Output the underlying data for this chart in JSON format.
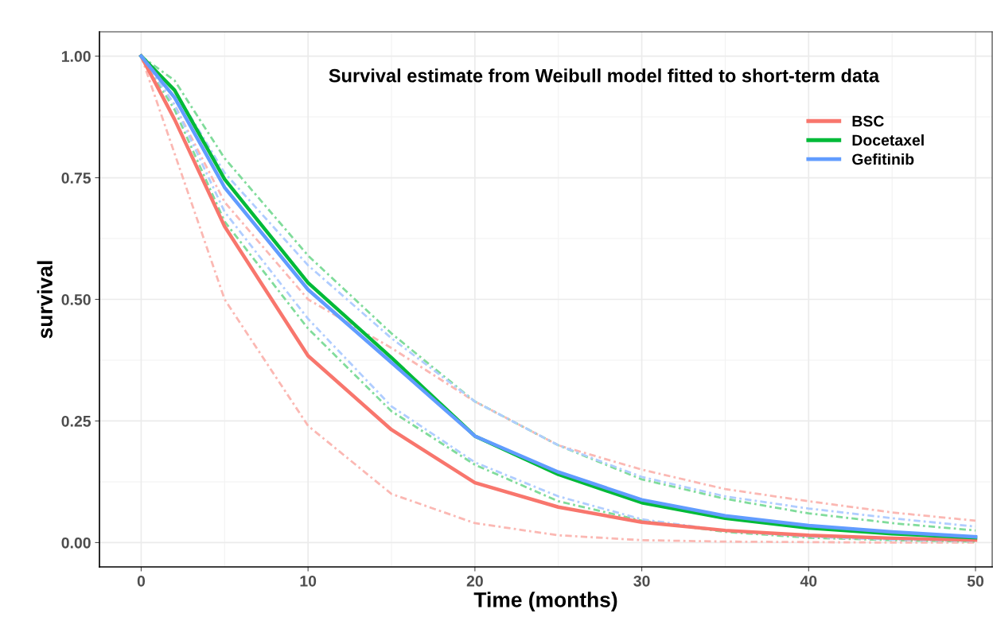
{
  "chart_data": {
    "type": "line",
    "title": "Survival estimate from Weibull model fitted to short-term data",
    "xlabel": "Time (months)",
    "ylabel": "survival",
    "x": [
      0,
      2,
      5,
      10,
      15,
      20,
      25,
      30,
      35,
      40,
      45,
      50
    ],
    "series": [
      {
        "name": "BSC",
        "color": "#f8766d",
        "values": [
          1.0,
          0.87,
          0.65,
          0.384,
          0.232,
          0.123,
          0.073,
          0.042,
          0.025,
          0.015,
          0.009,
          0.005
        ]
      },
      {
        "name": "Docetaxel",
        "color": "#00ba38",
        "values": [
          1.0,
          0.93,
          0.747,
          0.534,
          0.38,
          0.219,
          0.14,
          0.082,
          0.05,
          0.03,
          0.018,
          0.01
        ]
      },
      {
        "name": "Gefitinib",
        "color": "#619cff",
        "values": [
          1.0,
          0.915,
          0.73,
          0.52,
          0.37,
          0.219,
          0.145,
          0.088,
          0.055,
          0.035,
          0.022,
          0.012
        ]
      },
      {
        "color": "#fbb8b3",
        "line_style": "dashdot",
        "values": [
          1.0,
          0.9,
          0.7,
          0.5,
          0.4,
          0.29,
          0.2,
          0.15,
          0.11,
          0.085,
          0.062,
          0.045
        ]
      },
      {
        "color": "#fbb8b3",
        "line_style": "dashdot",
        "values": [
          1.0,
          0.8,
          0.5,
          0.24,
          0.1,
          0.04,
          0.015,
          0.005,
          0.002,
          0.001,
          0.0,
          0.0
        ]
      },
      {
        "color": "#80dc9b",
        "line_style": "dashdot",
        "values": [
          1.0,
          0.95,
          0.79,
          0.59,
          0.43,
          0.29,
          0.2,
          0.13,
          0.09,
          0.06,
          0.04,
          0.025
        ]
      },
      {
        "color": "#80dc9b",
        "line_style": "dashdot",
        "values": [
          1.0,
          0.89,
          0.66,
          0.44,
          0.27,
          0.16,
          0.085,
          0.045,
          0.022,
          0.01,
          0.005,
          0.002
        ]
      },
      {
        "color": "#b0cdff",
        "line_style": "dashdot",
        "values": [
          1.0,
          0.93,
          0.76,
          0.57,
          0.42,
          0.29,
          0.2,
          0.135,
          0.095,
          0.07,
          0.05,
          0.033
        ]
      },
      {
        "color": "#b0cdff",
        "line_style": "dashdot",
        "values": [
          1.0,
          0.9,
          0.68,
          0.46,
          0.28,
          0.165,
          0.095,
          0.048,
          0.024,
          0.012,
          0.006,
          0.003
        ]
      }
    ],
    "xlim": [
      -2.5,
      51
    ],
    "ylim": [
      -0.05,
      1.05
    ],
    "xticks": [
      0,
      10,
      20,
      30,
      40,
      50
    ],
    "yticks": [
      {
        "value": 0,
        "label": "0.00"
      },
      {
        "value": 0.25,
        "label": "0.25"
      },
      {
        "value": 0.5,
        "label": "0.50"
      },
      {
        "value": 0.75,
        "label": "0.75"
      },
      {
        "value": 1,
        "label": "1.00"
      }
    ],
    "grid": true,
    "legend": "top right",
    "line_style": "solid",
    "marker": "none"
  }
}
